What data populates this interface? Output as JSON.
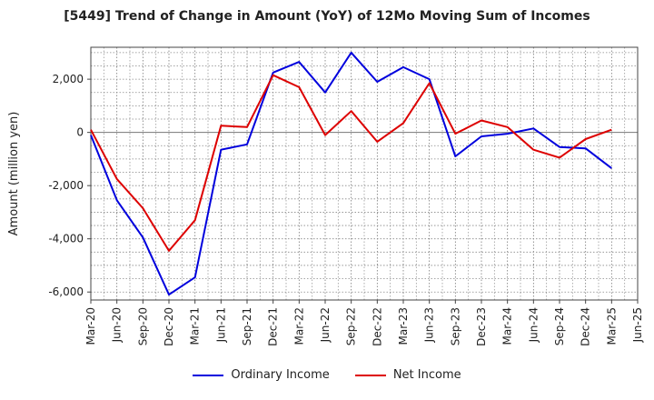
{
  "chart_data": {
    "type": "line",
    "title": "[5449]  Trend of Change in Amount (YoY) of 12Mo Moving Sum of Incomes",
    "xlabel": "",
    "ylabel": "Amount (million yen)",
    "ylim": [
      -6300,
      3200
    ],
    "yticks": [
      2000,
      0,
      -2000,
      -4000,
      -6000
    ],
    "ytick_labels": [
      "2,000",
      "0",
      "-2,000",
      "-4,000",
      "-6,000"
    ],
    "categories": [
      "Mar-20",
      "Jun-20",
      "Sep-20",
      "Dec-20",
      "Mar-21",
      "Jun-21",
      "Sep-21",
      "Dec-21",
      "Mar-22",
      "Jun-22",
      "Sep-22",
      "Dec-22",
      "Mar-23",
      "Jun-23",
      "Sep-23",
      "Dec-23",
      "Mar-24",
      "Jun-24",
      "Sep-24",
      "Dec-24",
      "Mar-25",
      "Jun-25"
    ],
    "grid": true,
    "legend_position": "bottom",
    "series": [
      {
        "name": "Ordinary Income",
        "color": "#0000dd",
        "values": [
          -100,
          -2550,
          -3950,
          -6100,
          -5450,
          -650,
          -450,
          2250,
          2650,
          1500,
          3000,
          1900,
          2450,
          2000,
          -900,
          -150,
          -50,
          150,
          -550,
          -600,
          -1350,
          null
        ]
      },
      {
        "name": "Net Income",
        "color": "#dd0000",
        "values": [
          100,
          -1750,
          -2850,
          -4450,
          -3300,
          250,
          200,
          2150,
          1700,
          -100,
          800,
          -350,
          350,
          1850,
          -50,
          450,
          200,
          -650,
          -950,
          -250,
          100,
          null
        ]
      }
    ]
  }
}
